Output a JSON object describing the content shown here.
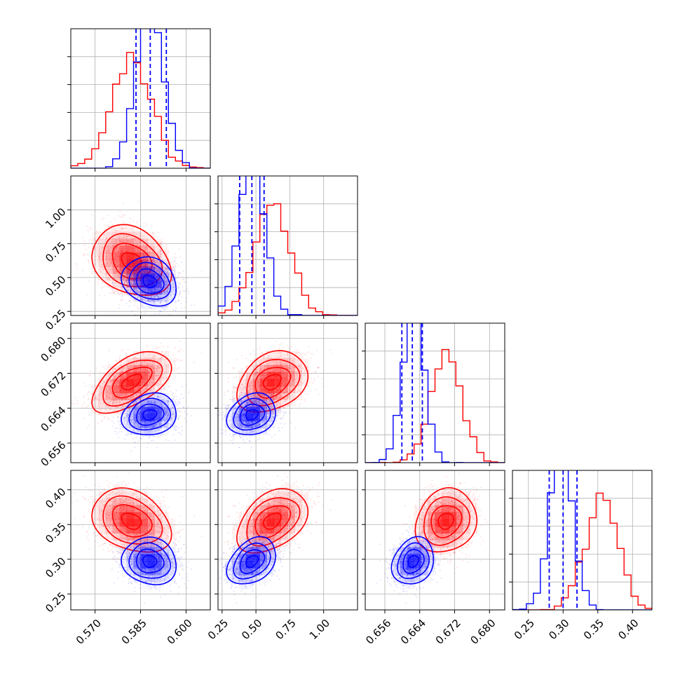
{
  "chart_data": {
    "type": "corner",
    "parameters": [
      {
        "range": [
          0.562,
          0.608
        ],
        "ticks": [
          0.57,
          0.585,
          0.6
        ],
        "tick_labels": [
          "0.570",
          "0.585",
          "0.600"
        ]
      },
      {
        "range": [
          0.22,
          1.25
        ],
        "ticks": [
          0.25,
          0.5,
          0.75,
          1.0
        ],
        "tick_labels": [
          "0.25",
          "0.50",
          "0.75",
          "1.00"
        ]
      },
      {
        "range": [
          0.6515,
          0.6835
        ],
        "ticks": [
          0.656,
          0.664,
          0.672,
          0.68
        ],
        "tick_labels": [
          "0.656",
          "0.664",
          "0.672",
          "0.680"
        ]
      },
      {
        "range": [
          0.227,
          0.428
        ],
        "ticks": [
          0.25,
          0.3,
          0.35,
          0.4
        ],
        "tick_labels": [
          "0.25",
          "0.30",
          "0.35",
          "0.40"
        ]
      }
    ],
    "grid": true,
    "series": [
      {
        "color": "#ff0000",
        "mean": [
          0.582,
          0.62,
          0.67,
          0.355
        ],
        "sd": [
          0.0065,
          0.13,
          0.0035,
          0.023
        ],
        "corr": [
          [
            1.0,
            -0.25,
            0.55,
            -0.3
          ],
          [
            -0.25,
            1.0,
            0.3,
            0.4
          ],
          [
            0.55,
            0.3,
            1.0,
            0.15
          ],
          [
            -0.3,
            0.4,
            0.15,
            1.0
          ]
        ]
      },
      {
        "color": "#0000ff",
        "mean": [
          0.588,
          0.47,
          0.6625,
          0.297
        ],
        "sd": [
          0.0045,
          0.09,
          0.0024,
          0.017
        ],
        "corr": [
          [
            1.0,
            -0.2,
            0.15,
            -0.1
          ],
          [
            -0.2,
            1.0,
            0.2,
            0.35
          ],
          [
            0.15,
            0.2,
            1.0,
            0.2
          ],
          [
            -0.1,
            0.35,
            0.2,
            1.0
          ]
        ],
        "quantiles": [
          [
            0.5835,
            0.5882,
            0.5935
          ],
          [
            0.38,
            0.47,
            0.56
          ],
          [
            0.6599,
            0.6623,
            0.6646
          ],
          [
            0.28,
            0.3,
            0.32
          ]
        ]
      }
    ]
  }
}
